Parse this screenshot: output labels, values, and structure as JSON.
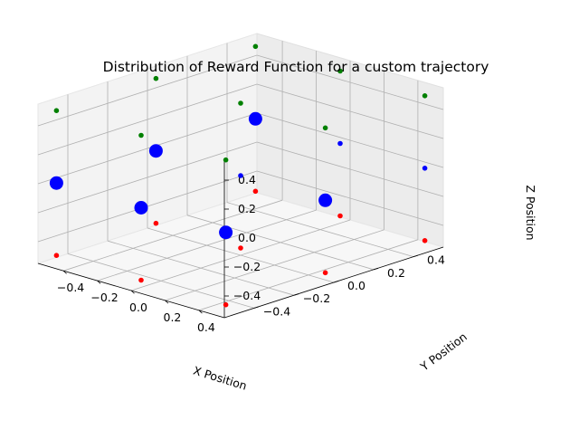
{
  "chart_data": {
    "type": "scatter",
    "projection": "3d",
    "title": "Distribution of Reward Function for a custom trajectory",
    "xlabel": "X Position",
    "ylabel": "Y Position",
    "zlabel": "Z Position",
    "xlim": [
      -0.55,
      0.55
    ],
    "ylim": [
      -0.55,
      0.55
    ],
    "zlim": [
      -0.55,
      0.55
    ],
    "xticks": [
      "−0.4",
      "−0.2",
      "0.0",
      "0.2",
      "0.4"
    ],
    "yticks": [
      "−0.4",
      "−0.2",
      "0.0",
      "0.2",
      "0.4"
    ],
    "zticks": [
      "−0.4",
      "−0.2",
      "0.0",
      "0.2",
      "0.4"
    ],
    "grid": true,
    "colors": {
      "top": "#008000",
      "middle": "#0000ff",
      "bottom": "#ff0000"
    },
    "series": [
      {
        "color": "#008000",
        "marker_size": "small",
        "points": [
          {
            "x": -0.5,
            "y": -0.5,
            "z": 0.5
          },
          {
            "x": 0.0,
            "y": -0.5,
            "z": 0.5
          },
          {
            "x": 0.5,
            "y": -0.5,
            "z": 0.5
          },
          {
            "x": -0.5,
            "y": 0.0,
            "z": 0.5
          },
          {
            "x": 0.0,
            "y": 0.0,
            "z": 0.5
          },
          {
            "x": 0.5,
            "y": 0.0,
            "z": 0.5
          },
          {
            "x": -0.5,
            "y": 0.5,
            "z": 0.5
          },
          {
            "x": 0.0,
            "y": 0.5,
            "z": 0.5
          },
          {
            "x": 0.5,
            "y": 0.5,
            "z": 0.5
          }
        ]
      },
      {
        "color": "#0000ff",
        "points": [
          {
            "x": -0.5,
            "y": -0.5,
            "z": 0.0,
            "size": "large"
          },
          {
            "x": 0.0,
            "y": -0.5,
            "z": 0.0,
            "size": "large"
          },
          {
            "x": 0.5,
            "y": -0.5,
            "z": 0.0,
            "size": "large"
          },
          {
            "x": -0.5,
            "y": 0.0,
            "z": 0.0,
            "size": "large"
          },
          {
            "x": 0.5,
            "y": 0.0,
            "z": 0.0,
            "size": "large"
          },
          {
            "x": -0.5,
            "y": 0.5,
            "z": 0.0,
            "size": "large"
          },
          {
            "x": 0.0,
            "y": 0.0,
            "z": 0.0,
            "size": "small"
          },
          {
            "x": 0.0,
            "y": 0.5,
            "z": 0.0,
            "size": "small"
          },
          {
            "x": 0.5,
            "y": 0.5,
            "z": 0.0,
            "size": "small"
          }
        ]
      },
      {
        "color": "#ff0000",
        "marker_size": "small",
        "points": [
          {
            "x": -0.5,
            "y": -0.5,
            "z": -0.5
          },
          {
            "x": 0.0,
            "y": -0.5,
            "z": -0.5
          },
          {
            "x": 0.5,
            "y": -0.5,
            "z": -0.5
          },
          {
            "x": -0.5,
            "y": 0.0,
            "z": -0.5
          },
          {
            "x": 0.0,
            "y": 0.0,
            "z": -0.5
          },
          {
            "x": 0.5,
            "y": 0.0,
            "z": -0.5
          },
          {
            "x": -0.5,
            "y": 0.5,
            "z": -0.5
          },
          {
            "x": 0.0,
            "y": 0.5,
            "z": -0.5
          },
          {
            "x": 0.5,
            "y": 0.5,
            "z": -0.5
          }
        ]
      }
    ]
  }
}
